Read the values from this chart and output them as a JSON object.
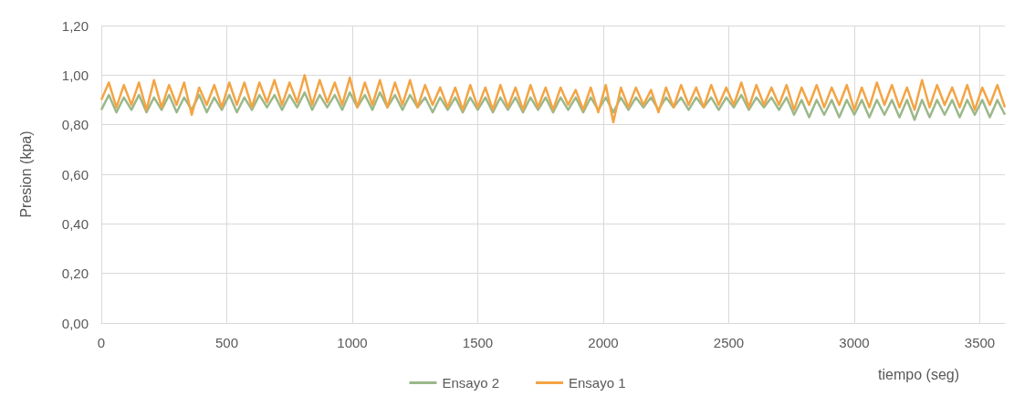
{
  "chart_data": {
    "type": "line",
    "xlabel": "tiempo (seg)",
    "ylabel": "Presion (kpa)",
    "x": [
      0,
      30,
      60,
      90,
      120,
      150,
      180,
      210,
      240,
      270,
      300,
      330,
      360,
      390,
      420,
      450,
      480,
      510,
      540,
      570,
      600,
      630,
      660,
      690,
      720,
      750,
      780,
      810,
      840,
      870,
      900,
      930,
      960,
      990,
      1020,
      1050,
      1080,
      1110,
      1140,
      1170,
      1200,
      1230,
      1260,
      1290,
      1320,
      1350,
      1380,
      1410,
      1440,
      1470,
      1500,
      1530,
      1560,
      1590,
      1620,
      1650,
      1680,
      1710,
      1740,
      1770,
      1800,
      1830,
      1860,
      1890,
      1920,
      1950,
      1980,
      2010,
      2040,
      2070,
      2100,
      2130,
      2160,
      2190,
      2220,
      2250,
      2280,
      2310,
      2340,
      2370,
      2400,
      2430,
      2460,
      2490,
      2520,
      2550,
      2580,
      2610,
      2640,
      2670,
      2700,
      2730,
      2760,
      2790,
      2820,
      2850,
      2880,
      2910,
      2940,
      2970,
      3000,
      3030,
      3060,
      3090,
      3120,
      3150,
      3180,
      3210,
      3240,
      3270,
      3300,
      3330,
      3360,
      3390,
      3420,
      3450,
      3480,
      3510,
      3540,
      3570,
      3600
    ],
    "series": [
      {
        "name": "Ensayo 2",
        "color": "#9bb88a",
        "values": [
          0.86,
          0.92,
          0.85,
          0.91,
          0.86,
          0.92,
          0.85,
          0.91,
          0.86,
          0.92,
          0.85,
          0.91,
          0.86,
          0.92,
          0.85,
          0.91,
          0.86,
          0.92,
          0.85,
          0.91,
          0.86,
          0.92,
          0.87,
          0.92,
          0.86,
          0.92,
          0.87,
          0.93,
          0.86,
          0.92,
          0.87,
          0.92,
          0.86,
          0.93,
          0.87,
          0.92,
          0.86,
          0.93,
          0.87,
          0.92,
          0.86,
          0.92,
          0.87,
          0.91,
          0.85,
          0.91,
          0.86,
          0.91,
          0.85,
          0.91,
          0.86,
          0.91,
          0.85,
          0.91,
          0.86,
          0.91,
          0.85,
          0.91,
          0.86,
          0.91,
          0.85,
          0.91,
          0.86,
          0.91,
          0.85,
          0.91,
          0.86,
          0.91,
          0.85,
          0.91,
          0.86,
          0.91,
          0.87,
          0.91,
          0.86,
          0.91,
          0.87,
          0.91,
          0.86,
          0.91,
          0.87,
          0.91,
          0.86,
          0.91,
          0.87,
          0.92,
          0.86,
          0.91,
          0.87,
          0.91,
          0.86,
          0.91,
          0.84,
          0.9,
          0.83,
          0.9,
          0.84,
          0.9,
          0.83,
          0.9,
          0.84,
          0.9,
          0.83,
          0.9,
          0.84,
          0.9,
          0.83,
          0.9,
          0.82,
          0.9,
          0.83,
          0.9,
          0.84,
          0.9,
          0.83,
          0.9,
          0.84,
          0.9,
          0.83,
          0.9,
          0.84
        ]
      },
      {
        "name": "Ensayo 1",
        "color": "#f4a444",
        "values": [
          0.9,
          0.97,
          0.87,
          0.96,
          0.88,
          0.97,
          0.86,
          0.98,
          0.87,
          0.96,
          0.88,
          0.97,
          0.84,
          0.95,
          0.88,
          0.96,
          0.87,
          0.97,
          0.88,
          0.97,
          0.87,
          0.97,
          0.89,
          0.98,
          0.88,
          0.97,
          0.89,
          1.0,
          0.88,
          0.98,
          0.89,
          0.97,
          0.88,
          0.99,
          0.87,
          0.97,
          0.88,
          0.98,
          0.87,
          0.97,
          0.88,
          0.98,
          0.87,
          0.96,
          0.88,
          0.95,
          0.87,
          0.95,
          0.86,
          0.96,
          0.87,
          0.95,
          0.86,
          0.96,
          0.87,
          0.95,
          0.86,
          0.96,
          0.87,
          0.95,
          0.86,
          0.95,
          0.88,
          0.94,
          0.86,
          0.95,
          0.85,
          0.96,
          0.81,
          0.95,
          0.87,
          0.95,
          0.88,
          0.94,
          0.85,
          0.95,
          0.87,
          0.96,
          0.88,
          0.95,
          0.87,
          0.96,
          0.88,
          0.95,
          0.88,
          0.97,
          0.87,
          0.96,
          0.88,
          0.95,
          0.88,
          0.96,
          0.86,
          0.95,
          0.88,
          0.96,
          0.87,
          0.95,
          0.88,
          0.96,
          0.86,
          0.95,
          0.87,
          0.97,
          0.88,
          0.96,
          0.87,
          0.95,
          0.86,
          0.98,
          0.87,
          0.96,
          0.88,
          0.95,
          0.87,
          0.96,
          0.86,
          0.95,
          0.88,
          0.96,
          0.87
        ]
      }
    ],
    "xlim": [
      0,
      3600
    ],
    "xticks": [
      0,
      500,
      1000,
      1500,
      2000,
      2500,
      3000,
      3500
    ],
    "ylim": [
      0,
      1.2
    ],
    "yticks": [
      {
        "value": 0,
        "label": "0,00"
      },
      {
        "value": 0.2,
        "label": "0,20"
      },
      {
        "value": 0.4,
        "label": "0,40"
      },
      {
        "value": 0.6,
        "label": "0,60"
      },
      {
        "value": 0.8,
        "label": "0,80"
      },
      {
        "value": 1,
        "label": "1,00"
      },
      {
        "value": 1.2,
        "label": "1,20"
      }
    ],
    "grid": true,
    "legend": "bottom",
    "marker": "none",
    "line_style": "solid"
  }
}
